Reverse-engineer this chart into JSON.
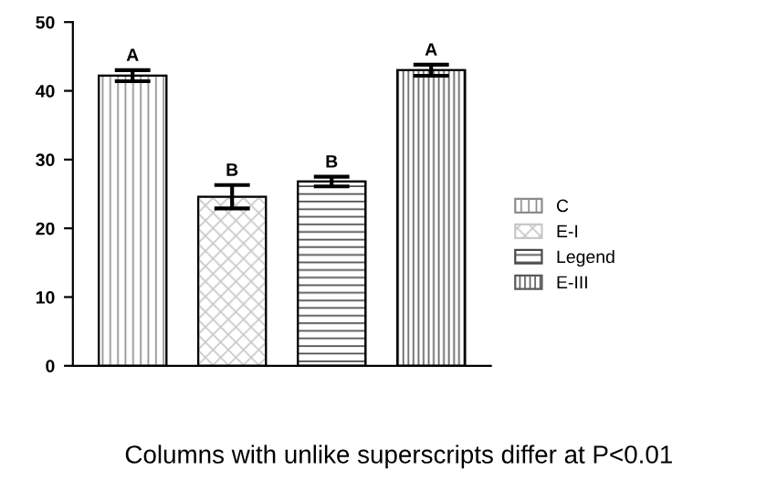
{
  "chart_data": {
    "type": "bar",
    "categories": [
      null,
      null,
      null,
      null
    ],
    "series": [
      {
        "name": "C",
        "color": "#8c8c8c",
        "values": [
          42.2,
          null,
          null,
          null
        ],
        "errors": [
          0.8,
          null,
          null,
          null
        ]
      },
      {
        "name": "E-I",
        "color": "#c8c8c8",
        "values": [
          null,
          24.6,
          null,
          null
        ],
        "errors": [
          null,
          1.7,
          null,
          null
        ]
      },
      {
        "name": "Legend",
        "color": "#4a4a4a",
        "values": [
          null,
          null,
          26.8,
          null
        ],
        "errors": [
          null,
          null,
          0.7,
          null
        ]
      },
      {
        "name": "E-III",
        "color": "#5a5a5a",
        "values": [
          null,
          null,
          null,
          43.0
        ],
        "errors": [
          null,
          null,
          null,
          0.8
        ]
      }
    ],
    "ylim": [
      0,
      50
    ],
    "yticks": [
      0,
      10,
      20,
      30,
      40,
      50
    ],
    "grid": false,
    "legend": "right",
    "tick_labels": "y",
    "annotations": [
      {
        "text": "A",
        "y": 43.0
      },
      {
        "text": "B",
        "y": 26.3
      },
      {
        "text": "B",
        "y": 27.5
      },
      {
        "text": "A",
        "y": 43.8
      },
      "Columns with unlike superscripts differ at P<0.01"
    ]
  }
}
